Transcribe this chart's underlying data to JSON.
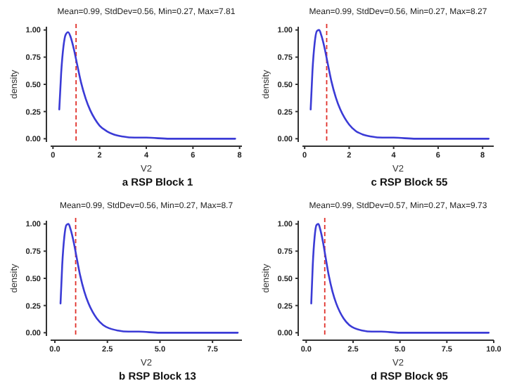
{
  "chart_data": [
    {
      "type": "line",
      "title": "Mean=0.99, StdDev=0.56, Min=0.27, Max=7.81",
      "xlabel": "V2",
      "ylabel": "density",
      "annotations": [
        "a RSP Block 1"
      ],
      "x": [
        0.27,
        0.35,
        0.45,
        0.55,
        0.65,
        0.75,
        0.9,
        1.0,
        1.2,
        1.4,
        1.6,
        1.8,
        2.0,
        2.3,
        2.6,
        3.0,
        3.5,
        4.0,
        5.0,
        6.0,
        7.81
      ],
      "series": [
        {
          "color": "#3b3bd6",
          "values": [
            0.27,
            0.6,
            0.85,
            0.96,
            0.98,
            0.94,
            0.82,
            0.72,
            0.52,
            0.37,
            0.26,
            0.18,
            0.12,
            0.07,
            0.04,
            0.02,
            0.01,
            0.01,
            0,
            0,
            0
          ]
        }
      ],
      "xlim": [
        -0.1,
        8.1
      ],
      "xticks": [
        0,
        2,
        4,
        6,
        8
      ],
      "ylim": [
        -0.03,
        1.03
      ],
      "yticks": [
        {
          "value": 0,
          "label": "0.00"
        },
        {
          "value": 0.25,
          "label": "0.25"
        },
        {
          "value": 0.5,
          "label": "0.50"
        },
        {
          "value": 0.75,
          "label": "0.75"
        },
        {
          "value": 1,
          "label": "1.00"
        }
      ],
      "ref_lines": [
        {
          "axis": "x",
          "value": 0.99,
          "color": "#e0302a",
          "line_style": "dashed"
        }
      ],
      "marker": "none",
      "line_style": "solid"
    },
    {
      "type": "line",
      "title": "Mean=0.99, StdDev=0.56, Min=0.27, Max=8.27",
      "xlabel": "V2",
      "ylabel": "density",
      "annotations": [
        "c RSP Block 55"
      ],
      "x": [
        0.27,
        0.35,
        0.45,
        0.55,
        0.65,
        0.75,
        0.9,
        1.0,
        1.2,
        1.4,
        1.6,
        1.8,
        2.0,
        2.3,
        2.6,
        3.0,
        3.5,
        4.0,
        5.0,
        6.0,
        8.27
      ],
      "series": [
        {
          "color": "#3b3bd6",
          "values": [
            0.27,
            0.62,
            0.88,
            0.99,
            1.0,
            0.95,
            0.83,
            0.73,
            0.53,
            0.38,
            0.27,
            0.19,
            0.13,
            0.07,
            0.04,
            0.02,
            0.01,
            0.01,
            0,
            0,
            0
          ]
        }
      ],
      "xlim": [
        -0.1,
        8.5
      ],
      "xticks": [
        0,
        2,
        4,
        6,
        8
      ],
      "ylim": [
        -0.03,
        1.03
      ],
      "yticks": [
        {
          "value": 0,
          "label": "0.00"
        },
        {
          "value": 0.25,
          "label": "0.25"
        },
        {
          "value": 0.5,
          "label": "0.50"
        },
        {
          "value": 0.75,
          "label": "0.75"
        },
        {
          "value": 1,
          "label": "1.00"
        }
      ],
      "ref_lines": [
        {
          "axis": "x",
          "value": 0.99,
          "color": "#e0302a",
          "line_style": "dashed"
        }
      ],
      "marker": "none",
      "line_style": "solid"
    },
    {
      "type": "line",
      "title": "Mean=0.99, StdDev=0.56, Min=0.27, Max=8.7",
      "xlabel": "V2",
      "ylabel": "density",
      "annotations": [
        "b RSP Block 13"
      ],
      "x": [
        0.27,
        0.35,
        0.45,
        0.55,
        0.65,
        0.75,
        0.9,
        1.0,
        1.2,
        1.4,
        1.6,
        1.8,
        2.0,
        2.3,
        2.6,
        3.0,
        3.5,
        4.0,
        5.0,
        6.0,
        8.7
      ],
      "series": [
        {
          "color": "#3b3bd6",
          "values": [
            0.27,
            0.62,
            0.88,
            0.99,
            1.0,
            0.95,
            0.83,
            0.73,
            0.53,
            0.38,
            0.27,
            0.19,
            0.13,
            0.07,
            0.04,
            0.02,
            0.01,
            0.01,
            0,
            0,
            0
          ]
        }
      ],
      "xlim": [
        -0.2,
        8.9
      ],
      "xticks": [
        {
          "value": 0,
          "label": "0.0"
        },
        {
          "value": 2.5,
          "label": "2.5"
        },
        {
          "value": 5,
          "label": "5.0"
        },
        {
          "value": 7.5,
          "label": "7.5"
        }
      ],
      "ylim": [
        -0.03,
        1.03
      ],
      "yticks": [
        {
          "value": 0,
          "label": "0.00"
        },
        {
          "value": 0.25,
          "label": "0.25"
        },
        {
          "value": 0.5,
          "label": "0.50"
        },
        {
          "value": 0.75,
          "label": "0.75"
        },
        {
          "value": 1,
          "label": "1.00"
        }
      ],
      "ref_lines": [
        {
          "axis": "x",
          "value": 0.99,
          "color": "#e0302a",
          "line_style": "dashed"
        }
      ],
      "marker": "none",
      "line_style": "solid"
    },
    {
      "type": "line",
      "title": "Mean=0.99, StdDev=0.57, Min=0.27, Max=9.73",
      "xlabel": "V2",
      "ylabel": "density",
      "annotations": [
        "d RSP Block 95"
      ],
      "x": [
        0.27,
        0.35,
        0.45,
        0.55,
        0.65,
        0.75,
        0.9,
        1.0,
        1.2,
        1.4,
        1.6,
        1.8,
        2.0,
        2.3,
        2.6,
        3.0,
        3.5,
        4.0,
        5.0,
        6.0,
        9.73
      ],
      "series": [
        {
          "color": "#3b3bd6",
          "values": [
            0.27,
            0.62,
            0.88,
            0.99,
            1.0,
            0.95,
            0.83,
            0.73,
            0.53,
            0.38,
            0.27,
            0.19,
            0.13,
            0.07,
            0.04,
            0.02,
            0.01,
            0.01,
            0,
            0,
            0
          ]
        }
      ],
      "xlim": [
        -0.2,
        10.0
      ],
      "xticks": [
        {
          "value": 0,
          "label": "0.0"
        },
        {
          "value": 2.5,
          "label": "2.5"
        },
        {
          "value": 5,
          "label": "5.0"
        },
        {
          "value": 7.5,
          "label": "7.5"
        },
        {
          "value": 10,
          "label": "10.0"
        }
      ],
      "ylim": [
        -0.03,
        1.03
      ],
      "yticks": [
        {
          "value": 0,
          "label": "0.00"
        },
        {
          "value": 0.25,
          "label": "0.25"
        },
        {
          "value": 0.5,
          "label": "0.50"
        },
        {
          "value": 0.75,
          "label": "0.75"
        },
        {
          "value": 1,
          "label": "1.00"
        }
      ],
      "ref_lines": [
        {
          "axis": "x",
          "value": 0.99,
          "color": "#e0302a",
          "line_style": "dashed"
        }
      ],
      "marker": "none",
      "line_style": "solid"
    }
  ]
}
